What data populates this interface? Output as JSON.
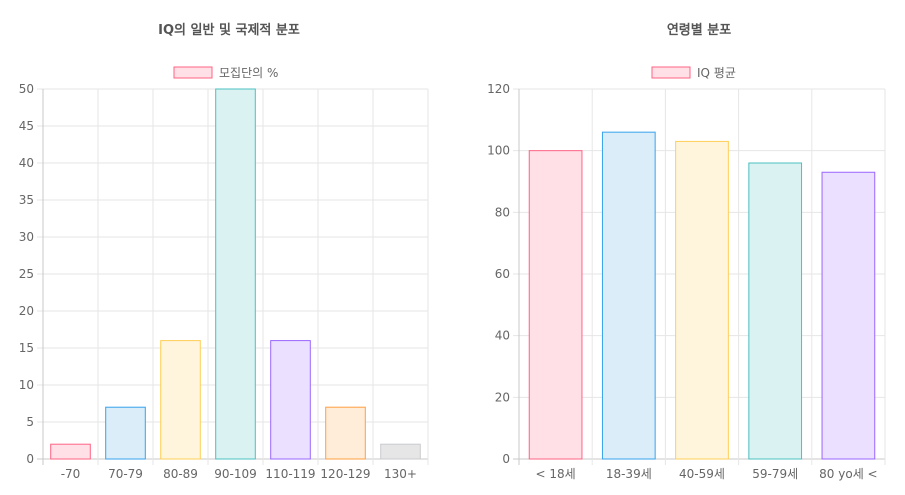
{
  "chart_data": [
    {
      "type": "bar",
      "title": "IQ의 일반 및 국제적 분포",
      "legend": "모집단의 %",
      "categories": [
        "-70",
        "70-79",
        "80-89",
        "90-109",
        "110-119",
        "120-129",
        "130+"
      ],
      "values": [
        2,
        7,
        16,
        50,
        16,
        7,
        2
      ],
      "ylim": [
        0,
        50
      ],
      "yticks": [
        "0",
        "5",
        "10",
        "15",
        "20",
        "25",
        "30",
        "35",
        "40",
        "45",
        "50"
      ],
      "ytick_values": [
        0,
        5,
        10,
        15,
        20,
        25,
        30,
        35,
        40,
        45,
        50
      ],
      "fill_colors": [
        "#ffe0e6",
        "#dbedf9",
        "#fff5dd",
        "#dbf2f2",
        "#ebe0ff",
        "#ffecd9",
        "#e6e6e6"
      ],
      "border_colors": [
        "#ff6384",
        "#36a2eb",
        "#ffce56",
        "#4bc0c0",
        "#9966ff",
        "#ff9f40",
        "#c9cbcf"
      ],
      "legend_fill": "#ffe0e6",
      "legend_border": "#ff6384",
      "grid": true,
      "legend_position": "top"
    },
    {
      "type": "bar",
      "title": "연령별 분포",
      "legend": "IQ 평균",
      "categories": [
        "< 18세",
        "18-39세",
        "40-59세",
        "59-79세",
        "80 yo세 <"
      ],
      "values": [
        100,
        106,
        103,
        96,
        93
      ],
      "ylim": [
        0,
        120
      ],
      "yticks": [
        "0",
        "20",
        "40",
        "60",
        "80",
        "100",
        "120"
      ],
      "ytick_values": [
        0,
        20,
        40,
        60,
        80,
        100,
        120
      ],
      "fill_colors": [
        "#ffe0e6",
        "#dbedf9",
        "#fff5dd",
        "#dbf2f2",
        "#ebe0ff"
      ],
      "border_colors": [
        "#ff6384",
        "#36a2eb",
        "#ffce56",
        "#4bc0c0",
        "#9966ff"
      ],
      "legend_fill": "#ffe0e6",
      "legend_border": "#ff6384",
      "grid": true,
      "legend_position": "top"
    }
  ]
}
